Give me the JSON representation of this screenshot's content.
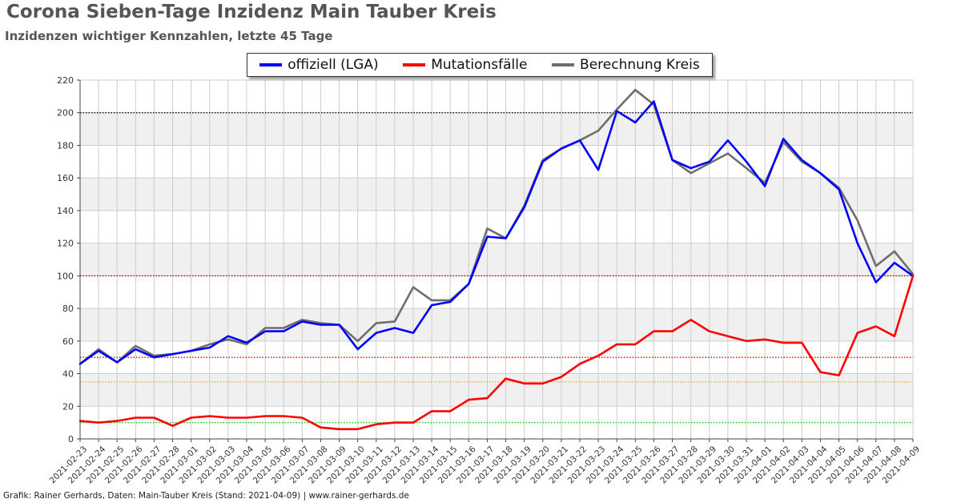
{
  "header": {
    "title": "Corona Sieben-Tage Inzidenz Main Tauber Kreis",
    "subtitle": "Inzidenzen wichtiger Kennzahlen, letzte 45 Tage"
  },
  "footer": {
    "text": "Grafik: Rainer Gerhards, Daten: Main-Tauber Kreis (Stand: 2021-04-09) | www.rainer-gerhards.de"
  },
  "chart_data": {
    "type": "line",
    "title": "Corona Sieben-Tage Inzidenz Main Tauber Kreis",
    "subtitle": "Inzidenzen wichtiger Kennzahlen, letzte 45 Tage",
    "xlabel": "",
    "ylabel": "",
    "ylim": [
      0,
      220
    ],
    "yticks": [
      0,
      20,
      40,
      60,
      80,
      100,
      120,
      140,
      160,
      180,
      200,
      220
    ],
    "grid": true,
    "legend_position": "top-center",
    "categories": [
      "2021-02-23",
      "2021-02-24",
      "2021-02-25",
      "2021-02-26",
      "2021-02-27",
      "2021-02-28",
      "2021-03-01",
      "2021-03-02",
      "2021-03-03",
      "2021-03-04",
      "2021-03-05",
      "2021-03-06",
      "2021-03-07",
      "2021-03-08",
      "2021-03-09",
      "2021-03-10",
      "2021-03-11",
      "2021-03-12",
      "2021-03-13",
      "2021-03-14",
      "2021-03-15",
      "2021-03-16",
      "2021-03-17",
      "2021-03-18",
      "2021-03-19",
      "2021-03-20",
      "2021-03-21",
      "2021-03-22",
      "2021-03-23",
      "2021-03-24",
      "2021-03-25",
      "2021-03-26",
      "2021-03-27",
      "2021-03-28",
      "2021-03-29",
      "2021-03-30",
      "2021-03-31",
      "2021-04-01",
      "2021-04-02",
      "2021-04-03",
      "2021-04-04",
      "2021-04-05",
      "2021-04-06",
      "2021-04-07",
      "2021-04-08",
      "2021-04-09"
    ],
    "series": [
      {
        "name": "offiziell (LGA)",
        "color": "#0000ff",
        "values": [
          46,
          54,
          47,
          55,
          50,
          52,
          54,
          56,
          63,
          59,
          66,
          66,
          72,
          70,
          70,
          55,
          65,
          68,
          65,
          82,
          84,
          95,
          124,
          123,
          142,
          170,
          178,
          183,
          165,
          201,
          194,
          207,
          171,
          166,
          170,
          183,
          170,
          155,
          184,
          171,
          163,
          153,
          120,
          96,
          108,
          100
        ]
      },
      {
        "name": "Mutationsfälle",
        "color": "#ff0000",
        "values": [
          11,
          10,
          11,
          13,
          13,
          8,
          13,
          14,
          13,
          13,
          14,
          14,
          13,
          7,
          6,
          6,
          9,
          10,
          10,
          17,
          17,
          24,
          25,
          37,
          34,
          34,
          38,
          46,
          51,
          58,
          58,
          66,
          66,
          73,
          66,
          63,
          60,
          61,
          59,
          59,
          41,
          39,
          65,
          69,
          63,
          100
        ]
      },
      {
        "name": "Berechnung Kreis",
        "color": "#6e6e6e",
        "values": [
          46,
          55,
          47,
          57,
          51,
          52,
          54,
          58,
          61,
          58,
          68,
          68,
          73,
          71,
          70,
          60,
          71,
          72,
          93,
          85,
          85,
          95,
          129,
          123,
          143,
          171,
          178,
          183,
          189,
          202,
          214,
          205,
          171,
          163,
          169,
          175,
          166,
          157,
          182,
          170,
          163,
          154,
          134,
          106,
          115,
          101
        ]
      }
    ],
    "reference_lines": [
      {
        "value": 200,
        "color": "#000000"
      },
      {
        "value": 100,
        "color": "#8b0000"
      },
      {
        "value": 50,
        "color": "#ff0000"
      },
      {
        "value": 35,
        "color": "#ffa500"
      },
      {
        "value": 10,
        "color": "#00c000"
      }
    ],
    "colors": {
      "band": "#f0f0f0",
      "grid": "#cccccc",
      "axis": "#444444",
      "tick_text": "#333333"
    }
  }
}
